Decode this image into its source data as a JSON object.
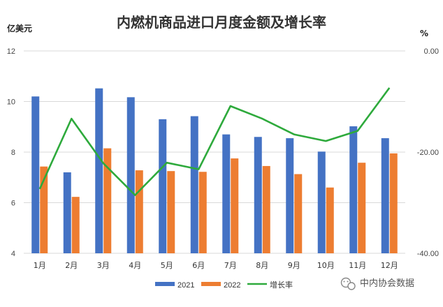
{
  "chart_data": {
    "type": "bar",
    "title": "内燃机商品进口月度金额及增长率",
    "ylabel_left": "亿美元",
    "ylabel_right": "%",
    "categories": [
      "1月",
      "2月",
      "3月",
      "4月",
      "5月",
      "6月",
      "7月",
      "8月",
      "9月",
      "10月",
      "11月",
      "12月"
    ],
    "series": [
      {
        "name": "2021",
        "type": "bar",
        "axis": "left",
        "color": "#4472C4",
        "values": [
          10.2,
          7.2,
          10.52,
          10.17,
          9.3,
          9.42,
          8.7,
          8.6,
          8.55,
          8.02,
          9.02,
          8.55
        ]
      },
      {
        "name": "2022",
        "type": "bar",
        "axis": "left",
        "color": "#ED7D31",
        "values": [
          7.43,
          6.23,
          8.15,
          7.28,
          7.25,
          7.22,
          7.75,
          7.45,
          7.13,
          6.6,
          7.58,
          7.95
        ]
      },
      {
        "name": "增长率",
        "type": "line",
        "axis": "right",
        "color": "#2EAA3C",
        "values": [
          -27.3,
          -13.4,
          -22.2,
          -28.5,
          -22.1,
          -23.4,
          -10.9,
          -13.4,
          -16.5,
          -17.8,
          -15.8,
          -7.3
        ]
      }
    ],
    "ylim_left": [
      4,
      12
    ],
    "yticks_left": [
      "4",
      "6",
      "8",
      "10",
      "12"
    ],
    "ylim_right": [
      -40,
      0
    ],
    "yticks_right": [
      "-40.00",
      "-20.00",
      "0.00"
    ],
    "grid": true,
    "legend": "bottom"
  },
  "watermark": {
    "text": "中内协会数据",
    "icon": "wechat-icon"
  }
}
